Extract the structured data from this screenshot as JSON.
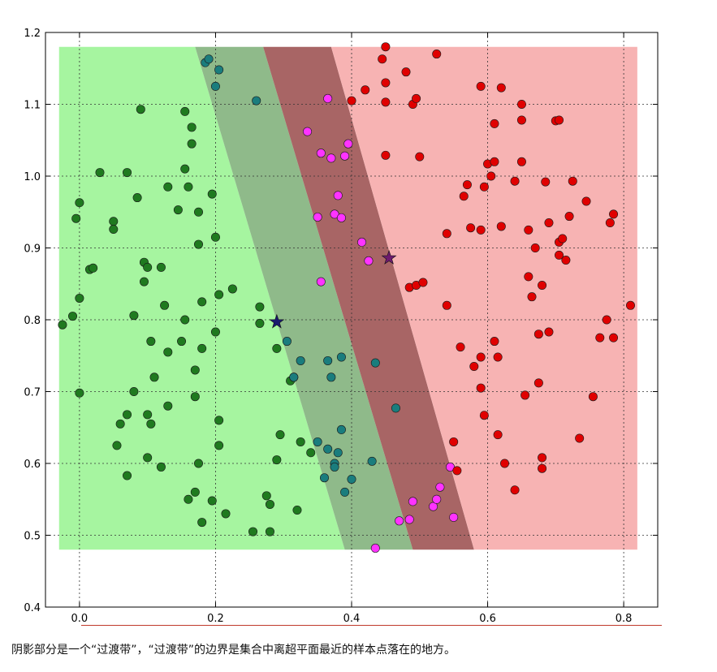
{
  "caption": "阴影部分是一个“过渡带”，“过渡带”的边界是集合中离超平面最近的样本点落在的地方。",
  "colors": {
    "green_region": "#a6f5a0",
    "dark_band_green": "#8fba8a",
    "dark_band_red": "#a86565",
    "red_region": "#f7b3b3",
    "green_point": "#1f7a1f",
    "teal_point": "#1a7d7d",
    "magenta_point": "#ff33ff",
    "red_point": "#e00000",
    "star_blue": "#1a1a6e",
    "star_purple": "#6e1a6e"
  },
  "chart_data": {
    "type": "scatter",
    "xlim": [
      -0.05,
      0.85
    ],
    "ylim": [
      0.4,
      1.2
    ],
    "x_ticks": [
      "0.0",
      "0.2",
      "0.4",
      "0.6",
      "0.8"
    ],
    "y_ticks": [
      "0.4",
      "0.5",
      "0.6",
      "0.7",
      "0.8",
      "0.9",
      "1.0",
      "1.1",
      "1.2"
    ],
    "grid": true,
    "shaded_area": {
      "x": [
        -0.03,
        0.82
      ],
      "y": [
        0.48,
        1.18
      ]
    },
    "boundaries": {
      "green_edge": [
        [
          0.17,
          1.18
        ],
        [
          0.39,
          0.48
        ]
      ],
      "middle": [
        [
          0.27,
          1.18
        ],
        [
          0.49,
          0.48
        ]
      ],
      "red_edge": [
        [
          0.37,
          1.18
        ],
        [
          0.58,
          0.48
        ]
      ]
    },
    "stars": [
      {
        "x": 0.29,
        "y": 0.797,
        "color": "star_blue"
      },
      {
        "x": 0.455,
        "y": 0.886,
        "color": "star_purple"
      }
    ],
    "series": [
      {
        "color": "green_point",
        "points": [
          [
            -0.025,
            0.793
          ],
          [
            -0.01,
            0.805
          ],
          [
            -0.005,
            0.941
          ],
          [
            0.0,
            0.963
          ],
          [
            0.0,
            0.83
          ],
          [
            0.0,
            0.698
          ],
          [
            0.015,
            0.87
          ],
          [
            0.02,
            0.872
          ],
          [
            0.03,
            1.005
          ],
          [
            0.05,
            0.937
          ],
          [
            0.05,
            0.926
          ],
          [
            0.055,
            0.625
          ],
          [
            0.06,
            0.655
          ],
          [
            0.07,
            0.583
          ],
          [
            0.07,
            0.668
          ],
          [
            0.07,
            1.005
          ],
          [
            0.08,
            0.806
          ],
          [
            0.08,
            0.7
          ],
          [
            0.085,
            0.97
          ],
          [
            0.09,
            1.093
          ],
          [
            0.095,
            0.88
          ],
          [
            0.095,
            0.853
          ],
          [
            0.1,
            0.873
          ],
          [
            0.1,
            0.608
          ],
          [
            0.1,
            0.668
          ],
          [
            0.105,
            0.77
          ],
          [
            0.105,
            0.655
          ],
          [
            0.11,
            0.72
          ],
          [
            0.12,
            0.595
          ],
          [
            0.12,
            0.873
          ],
          [
            0.125,
            0.82
          ],
          [
            0.13,
            0.755
          ],
          [
            0.13,
            0.68
          ],
          [
            0.13,
            0.985
          ],
          [
            0.145,
            0.953
          ],
          [
            0.15,
            0.77
          ],
          [
            0.155,
            0.8
          ],
          [
            0.155,
            1.01
          ],
          [
            0.155,
            1.09
          ],
          [
            0.16,
            0.985
          ],
          [
            0.165,
            1.045
          ],
          [
            0.165,
            1.068
          ],
          [
            0.17,
            0.693
          ],
          [
            0.17,
            0.73
          ],
          [
            0.17,
            0.56
          ],
          [
            0.16,
            0.55
          ],
          [
            0.175,
            0.6
          ],
          [
            0.175,
            0.905
          ],
          [
            0.175,
            0.95
          ],
          [
            0.18,
            0.825
          ],
          [
            0.18,
            0.76
          ],
          [
            0.18,
            0.518
          ],
          [
            0.195,
            0.548
          ],
          [
            0.195,
            0.975
          ],
          [
            0.2,
            0.915
          ],
          [
            0.2,
            0.783
          ],
          [
            0.205,
            0.835
          ],
          [
            0.205,
            0.625
          ],
          [
            0.205,
            0.66
          ],
          [
            0.215,
            0.53
          ],
          [
            0.225,
            0.843
          ],
          [
            0.255,
            0.505
          ],
          [
            0.265,
            0.818
          ],
          [
            0.265,
            0.795
          ],
          [
            0.275,
            0.555
          ],
          [
            0.28,
            0.505
          ],
          [
            0.28,
            0.543
          ],
          [
            0.29,
            0.605
          ],
          [
            0.295,
            0.64
          ],
          [
            0.29,
            0.76
          ],
          [
            0.31,
            0.715
          ],
          [
            0.315,
            0.72
          ],
          [
            0.32,
            0.535
          ],
          [
            0.325,
            0.63
          ],
          [
            0.34,
            0.615
          ]
        ]
      },
      {
        "color": "teal_point",
        "points": [
          [
            0.185,
            1.158
          ],
          [
            0.19,
            1.163
          ],
          [
            0.2,
            1.125
          ],
          [
            0.205,
            1.148
          ],
          [
            0.26,
            1.105
          ],
          [
            0.305,
            0.77
          ],
          [
            0.315,
            0.72
          ],
          [
            0.325,
            0.743
          ],
          [
            0.35,
            0.63
          ],
          [
            0.36,
            0.58
          ],
          [
            0.365,
            0.62
          ],
          [
            0.365,
            0.743
          ],
          [
            0.37,
            0.72
          ],
          [
            0.375,
            0.6
          ],
          [
            0.375,
            0.595
          ],
          [
            0.38,
            0.615
          ],
          [
            0.385,
            0.647
          ],
          [
            0.385,
            0.748
          ],
          [
            0.39,
            0.56
          ],
          [
            0.4,
            0.578
          ],
          [
            0.43,
            0.603
          ],
          [
            0.435,
            0.74
          ],
          [
            0.465,
            0.677
          ]
        ]
      },
      {
        "color": "magenta_point",
        "points": [
          [
            0.335,
            1.062
          ],
          [
            0.35,
            0.943
          ],
          [
            0.355,
            0.853
          ],
          [
            0.355,
            1.032
          ],
          [
            0.365,
            1.108
          ],
          [
            0.37,
            1.025
          ],
          [
            0.375,
            0.947
          ],
          [
            0.38,
            0.973
          ],
          [
            0.385,
            0.942
          ],
          [
            0.39,
            1.028
          ],
          [
            0.395,
            1.045
          ],
          [
            0.415,
            0.908
          ],
          [
            0.425,
            0.882
          ],
          [
            0.435,
            0.482
          ],
          [
            0.47,
            0.52
          ],
          [
            0.485,
            0.522
          ],
          [
            0.49,
            0.547
          ],
          [
            0.52,
            0.54
          ],
          [
            0.525,
            0.55
          ],
          [
            0.53,
            0.567
          ],
          [
            0.545,
            0.595
          ],
          [
            0.55,
            0.525
          ]
        ]
      },
      {
        "color": "red_point",
        "points": [
          [
            0.4,
            1.105
          ],
          [
            0.42,
            1.12
          ],
          [
            0.445,
            1.163
          ],
          [
            0.45,
            1.18
          ],
          [
            0.45,
            1.13
          ],
          [
            0.45,
            1.103
          ],
          [
            0.45,
            1.029
          ],
          [
            0.48,
            1.145
          ],
          [
            0.485,
            0.845
          ],
          [
            0.49,
            1.1
          ],
          [
            0.495,
            1.108
          ],
          [
            0.495,
            0.848
          ],
          [
            0.5,
            1.027
          ],
          [
            0.505,
            0.852
          ],
          [
            0.525,
            1.17
          ],
          [
            0.54,
            0.82
          ],
          [
            0.54,
            0.92
          ],
          [
            0.55,
            0.63
          ],
          [
            0.555,
            0.59
          ],
          [
            0.56,
            0.762
          ],
          [
            0.565,
            0.972
          ],
          [
            0.57,
            0.988
          ],
          [
            0.575,
            0.928
          ],
          [
            0.58,
            0.735
          ],
          [
            0.59,
            1.125
          ],
          [
            0.59,
            0.705
          ],
          [
            0.59,
            0.748
          ],
          [
            0.59,
            0.925
          ],
          [
            0.595,
            0.985
          ],
          [
            0.595,
            0.667
          ],
          [
            0.6,
            1.017
          ],
          [
            0.605,
            1.0
          ],
          [
            0.61,
            1.073
          ],
          [
            0.61,
            1.02
          ],
          [
            0.61,
            0.77
          ],
          [
            0.615,
            0.748
          ],
          [
            0.615,
            0.64
          ],
          [
            0.62,
            1.123
          ],
          [
            0.62,
            0.93
          ],
          [
            0.625,
            0.6
          ],
          [
            0.64,
            0.563
          ],
          [
            0.64,
            0.993
          ],
          [
            0.65,
            1.1
          ],
          [
            0.65,
            1.078
          ],
          [
            0.65,
            1.02
          ],
          [
            0.655,
            0.695
          ],
          [
            0.66,
            0.925
          ],
          [
            0.66,
            0.86
          ],
          [
            0.665,
            0.832
          ],
          [
            0.67,
            0.9
          ],
          [
            0.675,
            0.78
          ],
          [
            0.675,
            0.712
          ],
          [
            0.68,
            0.848
          ],
          [
            0.68,
            0.608
          ],
          [
            0.68,
            0.593
          ],
          [
            0.69,
            0.935
          ],
          [
            0.685,
            0.992
          ],
          [
            0.69,
            0.783
          ],
          [
            0.7,
            1.077
          ],
          [
            0.705,
            1.078
          ],
          [
            0.705,
            0.908
          ],
          [
            0.705,
            0.89
          ],
          [
            0.71,
            0.913
          ],
          [
            0.715,
            0.883
          ],
          [
            0.72,
            0.944
          ],
          [
            0.725,
            0.993
          ],
          [
            0.735,
            0.635
          ],
          [
            0.745,
            0.965
          ],
          [
            0.755,
            0.693
          ],
          [
            0.765,
            0.775
          ],
          [
            0.775,
            0.8
          ],
          [
            0.78,
            0.935
          ],
          [
            0.785,
            0.947
          ],
          [
            0.785,
            0.775
          ],
          [
            0.81,
            0.82
          ]
        ]
      }
    ]
  }
}
